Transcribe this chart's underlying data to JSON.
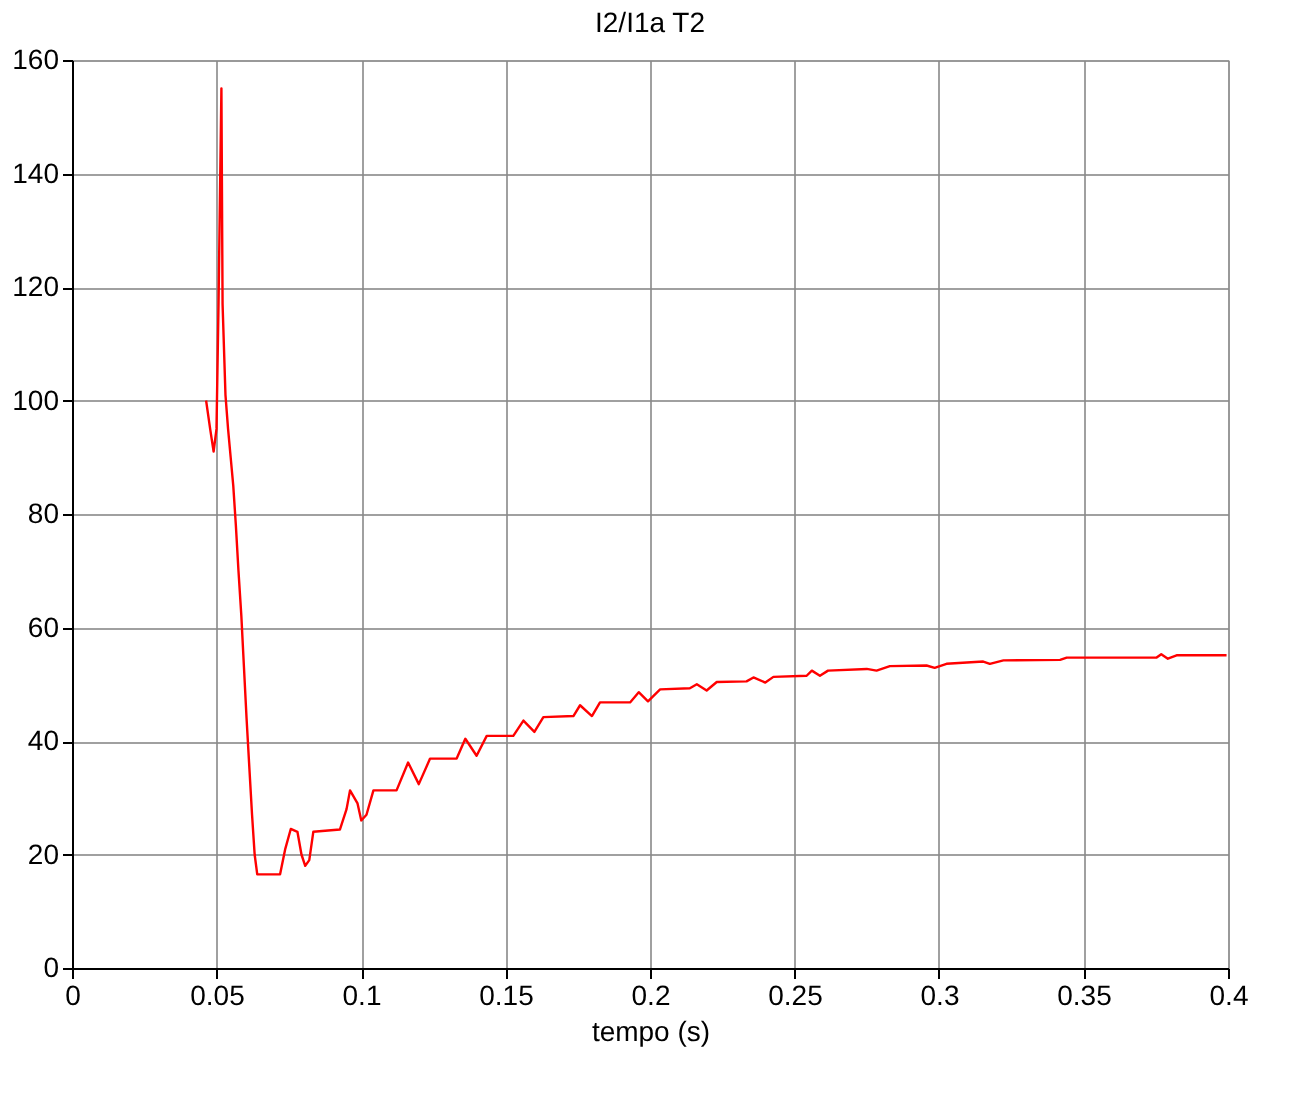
{
  "chart_data": {
    "type": "line",
    "title": "I2/I1a T2",
    "xlabel": "tempo (s)",
    "xlim": [
      0,
      0.4
    ],
    "xticks": [
      0,
      0.05,
      0.1,
      0.15,
      0.2,
      0.25,
      0.3,
      0.35,
      0.4
    ],
    "ylim": [
      0,
      160
    ],
    "yticks": [
      0,
      20,
      40,
      60,
      80,
      100,
      120,
      140,
      160
    ],
    "grid": true,
    "series": [
      {
        "color": "#ff0000",
        "x": [
          0.0464,
          0.0478,
          0.049,
          0.05,
          0.0507,
          0.0517,
          0.0521,
          0.0531,
          0.054,
          0.0549,
          0.0558,
          0.0567,
          0.0576,
          0.0586,
          0.0595,
          0.0604,
          0.0614,
          0.0623,
          0.0632,
          0.0641,
          0.072,
          0.0738,
          0.0757,
          0.078,
          0.0794,
          0.0807,
          0.0821,
          0.0835,
          0.0927,
          0.095,
          0.0962,
          0.0988,
          0.1001,
          0.1019,
          0.1043,
          0.1123,
          0.1163,
          0.12,
          0.1239,
          0.1331,
          0.1361,
          0.14,
          0.1435,
          0.1527,
          0.1562,
          0.16,
          0.1631,
          0.1735,
          0.1758,
          0.1799,
          0.1827,
          0.1931,
          0.1961,
          0.1993,
          0.2035,
          0.2138,
          0.2162,
          0.2196,
          0.2231,
          0.2334,
          0.2358,
          0.2399,
          0.2427,
          0.2542,
          0.256,
          0.2588,
          0.2616,
          0.275,
          0.2784,
          0.283,
          0.2957,
          0.2985,
          0.3026,
          0.3153,
          0.3176,
          0.3223,
          0.3419,
          0.3442,
          0.3753,
          0.3769,
          0.3792,
          0.3822,
          0.3995
        ],
        "values": [
          100,
          95,
          91,
          95,
          117,
          155,
          117,
          101,
          95,
          90,
          85,
          78,
          70,
          62,
          53,
          44,
          35,
          27,
          20,
          16.5,
          16.5,
          21,
          24.5,
          24,
          20,
          18,
          19,
          24,
          24.4,
          28,
          31.3,
          29,
          26,
          27,
          31.3,
          31.3,
          36.2,
          32.4,
          36.9,
          36.9,
          40.4,
          37.4,
          40.9,
          40.9,
          43.6,
          41.6,
          44.2,
          44.4,
          46.3,
          44.4,
          46.8,
          46.8,
          48.6,
          47,
          49.1,
          49.3,
          50,
          48.9,
          50.4,
          50.5,
          51.2,
          50.3,
          51.3,
          51.5,
          52.4,
          51.5,
          52.4,
          52.7,
          52.4,
          53.2,
          53.3,
          52.9,
          53.6,
          54,
          53.6,
          54.2,
          54.3,
          54.7,
          54.7,
          55.3,
          54.5,
          55.1,
          55.1
        ]
      }
    ]
  }
}
